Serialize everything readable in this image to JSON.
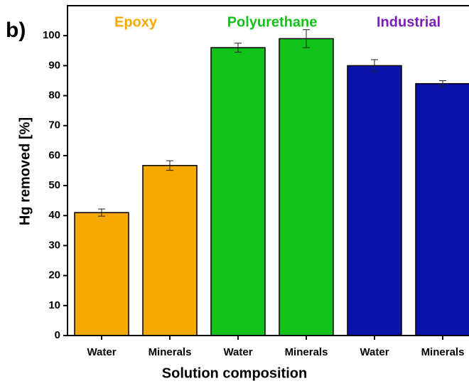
{
  "chart_data": {
    "type": "bar",
    "panel_label": "b)",
    "xlabel": "Solution composition",
    "ylabel": "Hg removed [%]",
    "categories": [
      "Water",
      "Minerals",
      "Water",
      "Minerals",
      "Water",
      "Minerals"
    ],
    "values": [
      41,
      56.7,
      96,
      99,
      90,
      84
    ],
    "errors": [
      1.2,
      1.6,
      1.5,
      3,
      2,
      1
    ],
    "colors": [
      "#f5a800",
      "#f5a800",
      "#11c21a",
      "#11c21a",
      "#0a14a8",
      "#0a14a8"
    ],
    "groups": [
      {
        "label": "Epoxy",
        "color": "#f5a800"
      },
      {
        "label": "Polyurethane",
        "color": "#11c21a"
      },
      {
        "label": "Industrial",
        "color": "#7b1fb3"
      }
    ],
    "ylim": [
      0,
      110
    ],
    "yticks": [
      0,
      10,
      20,
      30,
      40,
      50,
      60,
      70,
      80,
      90,
      100
    ]
  }
}
